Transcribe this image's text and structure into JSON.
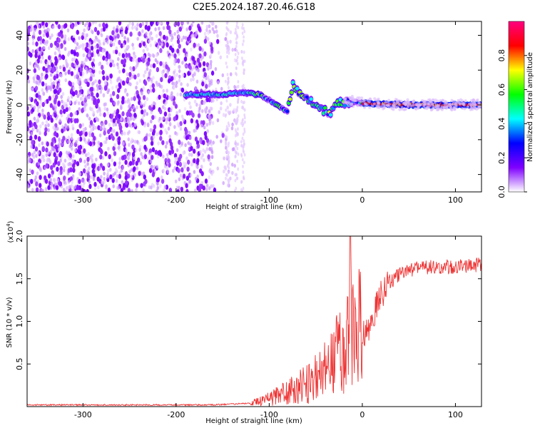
{
  "figure": {
    "title": "C2E5.2024.187.20.46.G18"
  },
  "chart_data": [
    {
      "type": "heatmap",
      "xlabel": "Height of straight line (km)",
      "ylabel": "Frequency (Hz)",
      "xlim": [
        -360,
        128
      ],
      "ylim": [
        -50,
        48
      ],
      "x_ticks": [
        {
          "value": -300,
          "label": "-300"
        },
        {
          "value": -200,
          "label": "-200"
        },
        {
          "value": -100,
          "label": "-100"
        },
        {
          "value": 0,
          "label": "0"
        },
        {
          "value": 100,
          "label": "100"
        }
      ],
      "y_ticks": [
        {
          "value": -40,
          "label": "-40"
        },
        {
          "value": -20,
          "label": "-20"
        },
        {
          "value": 0,
          "label": "0"
        },
        {
          "value": 20,
          "label": "20"
        },
        {
          "value": 40,
          "label": "40"
        }
      ],
      "colorbar": {
        "label": "Normalized spectral amplitude",
        "range": [
          0,
          1
        ],
        "colormap": [
          "#ffffff",
          "#7f00ff",
          "#0000ff",
          "#00ffff",
          "#00ff00",
          "#ffff00",
          "#ff0000",
          "#ff0080"
        ],
        "ticks": [
          {
            "value": 0.0,
            "label": "0.0"
          },
          {
            "value": 0.2,
            "label": "0.2"
          },
          {
            "value": 0.4,
            "label": "0.4"
          },
          {
            "value": 0.6,
            "label": "0.6"
          },
          {
            "value": 0.8,
            "label": "0.8"
          }
        ]
      },
      "ridge": {
        "points": [
          {
            "x": -190,
            "y": 6
          },
          {
            "x": -150,
            "y": 6
          },
          {
            "x": -130,
            "y": 7
          },
          {
            "x": -110,
            "y": 6
          },
          {
            "x": -95,
            "y": 1
          },
          {
            "x": -80,
            "y": -4
          },
          {
            "x": -75,
            "y": 12
          },
          {
            "x": -65,
            "y": 6
          },
          {
            "x": -55,
            "y": 2
          },
          {
            "x": -45,
            "y": -2
          },
          {
            "x": -35,
            "y": -5
          },
          {
            "x": -25,
            "y": 1
          },
          {
            "x": -10,
            "y": 2
          },
          {
            "x": 0,
            "y": 1
          },
          {
            "x": 50,
            "y": 0
          },
          {
            "x": 100,
            "y": 0
          },
          {
            "x": 128,
            "y": 0
          }
        ]
      }
    },
    {
      "type": "line",
      "xlabel": "Height of straight line (km)",
      "ylabel": "SNR (10 * v/v)",
      "scale_label": "(x10",
      "scale_exp": "4",
      "scale_close": ")",
      "xlim": [
        -360,
        128
      ],
      "ylim": [
        0,
        2.0
      ],
      "x_ticks": [
        {
          "value": -300,
          "label": "-300"
        },
        {
          "value": -200,
          "label": "-200"
        },
        {
          "value": -100,
          "label": "-100"
        },
        {
          "value": 0,
          "label": "0"
        },
        {
          "value": 100,
          "label": "100"
        }
      ],
      "y_ticks": [
        {
          "value": 0.5,
          "label": "0.5"
        },
        {
          "value": 1.0,
          "label": "1.0"
        },
        {
          "value": 1.5,
          "label": "1.5"
        },
        {
          "value": 2.0,
          "label": "2.0"
        }
      ],
      "line_color": "#ee3333",
      "series": [
        {
          "x": [
            -360,
            -340,
            -320,
            -300,
            -280,
            -260,
            -240,
            -220,
            -200,
            -180,
            -160,
            -140,
            -120,
            -110,
            -100,
            -90,
            -80,
            -70,
            -60,
            -50,
            -40,
            -30,
            -25,
            -20,
            -15,
            -12,
            -10,
            -5,
            0,
            5,
            10,
            20,
            30,
            40,
            50,
            60,
            70,
            80,
            90,
            100,
            110,
            120,
            128
          ],
          "values": [
            0.02,
            0.02,
            0.02,
            0.02,
            0.02,
            0.02,
            0.02,
            0.02,
            0.02,
            0.02,
            0.02,
            0.03,
            0.04,
            0.06,
            0.09,
            0.13,
            0.18,
            0.22,
            0.28,
            0.33,
            0.4,
            0.55,
            0.7,
            0.6,
            0.9,
            1.1,
            0.9,
            0.95,
            0.9,
            0.85,
            1.05,
            1.3,
            1.45,
            1.55,
            1.6,
            1.62,
            1.63,
            1.64,
            1.64,
            1.65,
            1.66,
            1.66,
            1.67
          ]
        }
      ]
    }
  ]
}
